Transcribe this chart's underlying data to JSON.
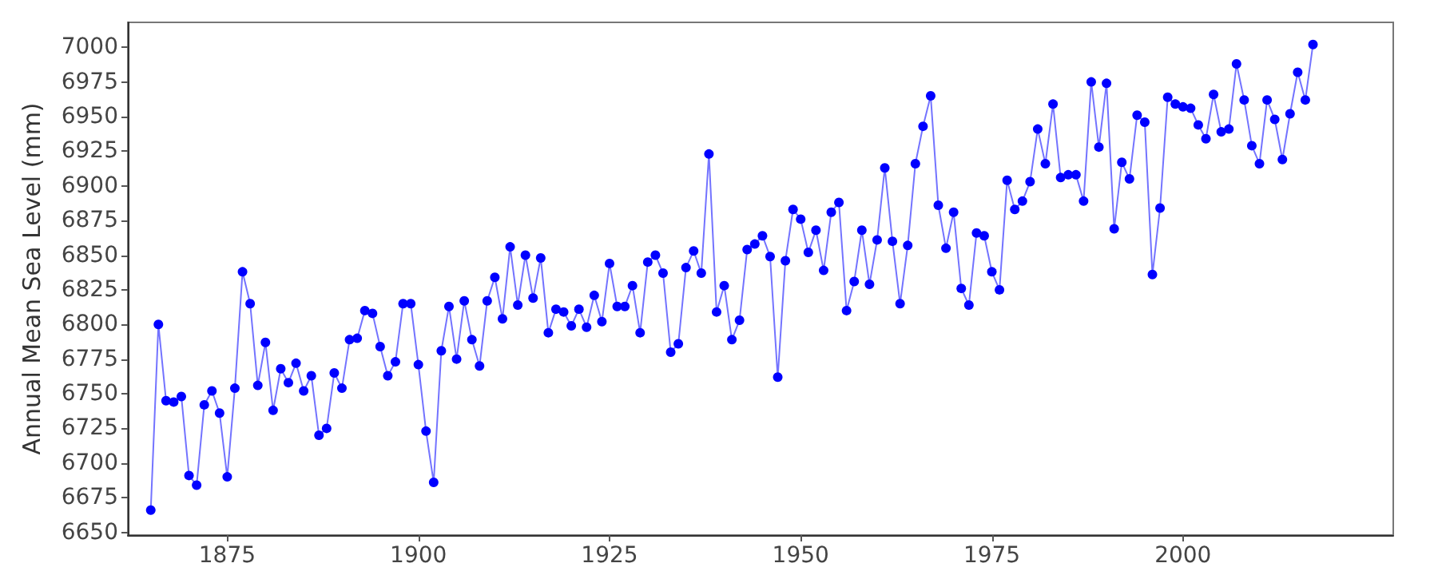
{
  "chart_data": {
    "type": "line",
    "ylabel": "Annual Mean Sea Level (mm)",
    "x": [
      1865,
      1866,
      1867,
      1868,
      1869,
      1870,
      1871,
      1872,
      1873,
      1874,
      1875,
      1876,
      1877,
      1878,
      1879,
      1880,
      1881,
      1882,
      1883,
      1884,
      1885,
      1886,
      1887,
      1888,
      1889,
      1890,
      1891,
      1892,
      1893,
      1894,
      1895,
      1896,
      1897,
      1898,
      1899,
      1900,
      1901,
      1902,
      1903,
      1904,
      1905,
      1906,
      1907,
      1908,
      1909,
      1910,
      1911,
      1912,
      1913,
      1914,
      1915,
      1916,
      1917,
      1918,
      1919,
      1920,
      1921,
      1922,
      1923,
      1924,
      1925,
      1926,
      1927,
      1928,
      1929,
      1930,
      1931,
      1932,
      1933,
      1934,
      1935,
      1936,
      1937,
      1938,
      1939,
      1940,
      1941,
      1942,
      1943,
      1944,
      1945,
      1946,
      1947,
      1948,
      1949,
      1950,
      1951,
      1952,
      1953,
      1954,
      1955,
      1956,
      1957,
      1958,
      1959,
      1960,
      1961,
      1962,
      1963,
      1964,
      1965,
      1966,
      1967,
      1968,
      1969,
      1970,
      1971,
      1972,
      1973,
      1974,
      1975,
      1976,
      1977,
      1978,
      1979,
      1980,
      1981,
      1982,
      1983,
      1984,
      1985,
      1986,
      1987,
      1988,
      1989,
      1990,
      1991,
      1992,
      1993,
      1994,
      1995,
      1996,
      1997,
      1998,
      1999,
      2000,
      2001,
      2002,
      2003,
      2004,
      2005,
      2006,
      2007,
      2008,
      2009,
      2010,
      2011,
      2012,
      2013,
      2014,
      2015,
      2016,
      2017
    ],
    "series": [
      {
        "color": "#0000ff",
        "values": [
          6666,
          6800,
          6745,
          6744,
          6748,
          6691,
          6684,
          6742,
          6752,
          6736,
          6690,
          6754,
          6838,
          6815,
          6756,
          6787,
          6738,
          6768,
          6758,
          6772,
          6752,
          6763,
          6720,
          6725,
          6765,
          6754,
          6789,
          6790,
          6810,
          6808,
          6784,
          6763,
          6773,
          6815,
          6815,
          6771,
          6723,
          6686,
          6781,
          6813,
          6775,
          6817,
          6789,
          6770,
          6817,
          6834,
          6804,
          6856,
          6814,
          6850,
          6819,
          6848,
          6794,
          6811,
          6809,
          6799,
          6811,
          6798,
          6821,
          6802,
          6844,
          6813,
          6813,
          6828,
          6794,
          6845,
          6850,
          6837,
          6780,
          6786,
          6841,
          6853,
          6837,
          6923,
          6809,
          6828,
          6789,
          6803,
          6854,
          6858,
          6864,
          6849,
          6762,
          6846,
          6883,
          6876,
          6852,
          6868,
          6839,
          6881,
          6888,
          6810,
          6831,
          6868,
          6829,
          6861,
          6913,
          6860,
          6815,
          6857,
          6916,
          6943,
          6965,
          6886,
          6855,
          6881,
          6826,
          6814,
          6866,
          6864,
          6838,
          6825,
          6904,
          6883,
          6889,
          6903,
          6941,
          6916,
          6959,
          6906,
          6908,
          6908,
          6889,
          6975,
          6928,
          6974,
          6869,
          6917,
          6905,
          6951,
          6946,
          6836,
          6884,
          6964,
          6959,
          6957,
          6956,
          6944,
          6934,
          6966,
          6939,
          6941,
          6988,
          6962,
          6929,
          6916,
          6962,
          6948,
          6919,
          6952,
          6982,
          6962,
          7002
        ]
      }
    ],
    "xlim": [
      1862,
      2027.5
    ],
    "ylim": [
      6648,
      7018
    ],
    "xticks": [
      1875,
      1900,
      1925,
      1950,
      1975,
      2000
    ],
    "yticks": [
      6650,
      6675,
      6700,
      6725,
      6750,
      6775,
      6800,
      6825,
      6850,
      6875,
      6900,
      6925,
      6950,
      6975,
      7000
    ],
    "grid": false,
    "marker": "circle",
    "line_style": "solid"
  }
}
